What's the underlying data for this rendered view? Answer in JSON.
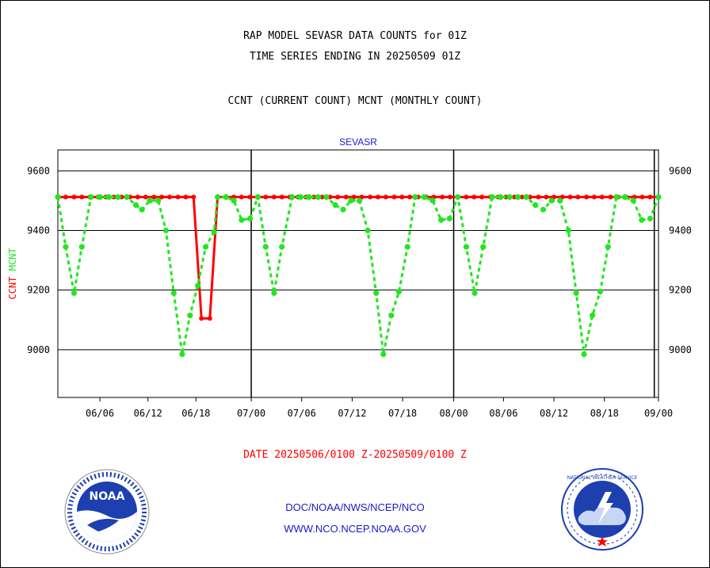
{
  "header": {
    "title1": "RAP MODEL SEVASR DATA COUNTS for 01Z",
    "title2": "TIME SERIES ENDING IN 20250509 01Z",
    "title3": "CCNT (CURRENT COUNT) MCNT (MONTHLY COUNT)"
  },
  "footer": {
    "date_range": "DATE 20250506/0100 Z-20250509/0100 Z",
    "org": "DOC/NOAA/NWS/NCEP/NCO",
    "url": "WWW.NCO.NCEP.NOAA.GOV"
  },
  "logos": {
    "noaa_text": "NOAA",
    "nws_text": "NATIONAL WEATHER SERVICE"
  },
  "colors": {
    "ccnt": "#ff0000",
    "mcnt": "#22e622",
    "label_blue": "#1a1acd"
  },
  "chart_data": {
    "type": "line",
    "title": "SEVASR",
    "ylabel_parts": [
      "CCNT",
      "MCNT"
    ],
    "ylim": [
      8840,
      9670
    ],
    "yticks": [
      9000,
      9200,
      9400,
      9600
    ],
    "xlim": [
      0,
      100
    ],
    "xticks": [
      {
        "x": 7,
        "label": "06/06"
      },
      {
        "x": 15,
        "label": "06/12"
      },
      {
        "x": 23,
        "label": "06/18"
      },
      {
        "x": 32.2,
        "label": "07/00"
      },
      {
        "x": 40.6,
        "label": "07/06"
      },
      {
        "x": 49,
        "label": "07/12"
      },
      {
        "x": 57.4,
        "label": "07/18"
      },
      {
        "x": 65.9,
        "label": "08/00"
      },
      {
        "x": 74.2,
        "label": "08/06"
      },
      {
        "x": 82.6,
        "label": "08/12"
      },
      {
        "x": 91,
        "label": "08/18"
      },
      {
        "x": 100,
        "label": "09/00"
      }
    ],
    "month_lines": [
      32.2,
      65.9,
      99.3
    ],
    "grid": true,
    "series": [
      {
        "name": "CCNT",
        "color": "#ff0000",
        "points": [
          [
            0,
            9512
          ],
          [
            1.3,
            9512
          ],
          [
            2.7,
            9512
          ],
          [
            4,
            9512
          ],
          [
            5.3,
            9512
          ],
          [
            6.7,
            9512
          ],
          [
            8,
            9512
          ],
          [
            9.3,
            9512
          ],
          [
            10.6,
            9512
          ],
          [
            12,
            9512
          ],
          [
            13.3,
            9512
          ],
          [
            14.6,
            9512
          ],
          [
            16,
            9512
          ],
          [
            17.3,
            9512
          ],
          [
            18.6,
            9512
          ],
          [
            20,
            9512
          ],
          [
            21.3,
            9512
          ],
          [
            22.6,
            9512
          ],
          [
            23.9,
            9105
          ],
          [
            25.3,
            9105
          ],
          [
            26.6,
            9512
          ],
          [
            28,
            9512
          ],
          [
            29.3,
            9512
          ],
          [
            30.6,
            9512
          ],
          [
            32,
            9512
          ],
          [
            33.3,
            9512
          ],
          [
            34.6,
            9512
          ],
          [
            36,
            9512
          ],
          [
            37.3,
            9512
          ],
          [
            38.6,
            9512
          ],
          [
            40,
            9512
          ],
          [
            41.3,
            9512
          ],
          [
            42.6,
            9512
          ],
          [
            44,
            9512
          ],
          [
            45.3,
            9512
          ],
          [
            46.6,
            9512
          ],
          [
            48,
            9512
          ],
          [
            49.3,
            9512
          ],
          [
            50.6,
            9512
          ],
          [
            52,
            9512
          ],
          [
            53.3,
            9512
          ],
          [
            54.6,
            9512
          ],
          [
            56,
            9512
          ],
          [
            57.3,
            9512
          ],
          [
            58.6,
            9512
          ],
          [
            60,
            9512
          ],
          [
            61.3,
            9512
          ],
          [
            62.6,
            9512
          ],
          [
            64,
            9512
          ],
          [
            65.3,
            9512
          ],
          [
            66.6,
            9512
          ],
          [
            68,
            9512
          ],
          [
            69.3,
            9512
          ],
          [
            70.6,
            9512
          ],
          [
            72,
            9512
          ],
          [
            73.3,
            9512
          ],
          [
            74.6,
            9512
          ],
          [
            76,
            9512
          ],
          [
            77.3,
            9512
          ],
          [
            78.6,
            9512
          ],
          [
            80,
            9512
          ],
          [
            81.3,
            9512
          ],
          [
            82.6,
            9512
          ],
          [
            84,
            9512
          ],
          [
            85.3,
            9512
          ],
          [
            86.6,
            9512
          ],
          [
            88,
            9512
          ],
          [
            89.3,
            9512
          ],
          [
            90.6,
            9512
          ],
          [
            92,
            9512
          ],
          [
            93.3,
            9512
          ],
          [
            94.6,
            9512
          ],
          [
            96,
            9512
          ],
          [
            97.3,
            9512
          ],
          [
            98.6,
            9512
          ],
          [
            100,
            9512
          ]
        ]
      },
      {
        "name": "MCNT",
        "color": "#22e622",
        "points": [
          [
            0,
            9512
          ],
          [
            1.3,
            9345
          ],
          [
            2.7,
            9190
          ],
          [
            4,
            9345
          ],
          [
            5.5,
            9512
          ],
          [
            7,
            9512
          ],
          [
            8.5,
            9512
          ],
          [
            10,
            9512
          ],
          [
            11.5,
            9512
          ],
          [
            13,
            9485
          ],
          [
            14,
            9470
          ],
          [
            15.3,
            9500
          ],
          [
            16.7,
            9500
          ],
          [
            18,
            9400
          ],
          [
            19.3,
            9190
          ],
          [
            20.7,
            8985
          ],
          [
            22,
            9115
          ],
          [
            23.3,
            9215
          ],
          [
            24.6,
            9345
          ],
          [
            26,
            9395
          ],
          [
            26.6,
            9512
          ],
          [
            28,
            9512
          ],
          [
            29.3,
            9500
          ],
          [
            30.6,
            9435
          ],
          [
            32,
            9440
          ],
          [
            33.3,
            9512
          ],
          [
            34.6,
            9345
          ],
          [
            36,
            9190
          ],
          [
            37.3,
            9345
          ],
          [
            39,
            9512
          ],
          [
            40.4,
            9512
          ],
          [
            41.8,
            9512
          ],
          [
            43.3,
            9512
          ],
          [
            44.7,
            9512
          ],
          [
            46.2,
            9485
          ],
          [
            47.5,
            9470
          ],
          [
            48.8,
            9500
          ],
          [
            50.2,
            9500
          ],
          [
            51.6,
            9400
          ],
          [
            53,
            9190
          ],
          [
            54.2,
            8985
          ],
          [
            55.5,
            9115
          ],
          [
            56.8,
            9195
          ],
          [
            58.2,
            9345
          ],
          [
            59.5,
            9512
          ],
          [
            61,
            9512
          ],
          [
            62.4,
            9500
          ],
          [
            63.8,
            9435
          ],
          [
            65.2,
            9440
          ],
          [
            66.6,
            9512
          ],
          [
            68,
            9345
          ],
          [
            69.4,
            9190
          ],
          [
            70.8,
            9345
          ],
          [
            72.3,
            9512
          ],
          [
            73.7,
            9512
          ],
          [
            75.2,
            9512
          ],
          [
            76.6,
            9512
          ],
          [
            78,
            9512
          ],
          [
            79.5,
            9485
          ],
          [
            80.8,
            9470
          ],
          [
            82.2,
            9500
          ],
          [
            83.6,
            9500
          ],
          [
            85,
            9400
          ],
          [
            86.3,
            9190
          ],
          [
            87.6,
            8985
          ],
          [
            89,
            9115
          ],
          [
            90.3,
            9195
          ],
          [
            91.6,
            9345
          ],
          [
            93,
            9512
          ],
          [
            94.4,
            9512
          ],
          [
            95.8,
            9500
          ],
          [
            97.2,
            9435
          ],
          [
            98.6,
            9440
          ],
          [
            100,
            9512
          ]
        ]
      }
    ]
  }
}
